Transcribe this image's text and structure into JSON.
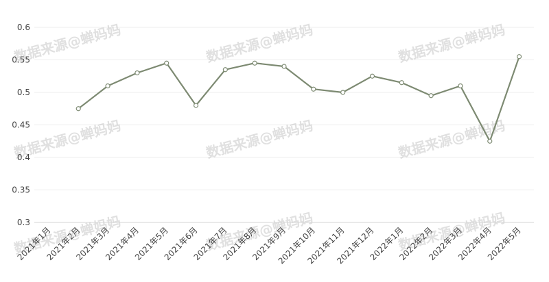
{
  "watermark": "数据来源@蝉妈妈",
  "chart_data": {
    "type": "line",
    "title": "",
    "xlabel": "",
    "ylabel": "",
    "ylim": [
      0.3,
      0.6
    ],
    "yticks": [
      "0.3",
      "0.35",
      "0.4",
      "0.45",
      "0.5",
      "0.55",
      "0.6"
    ],
    "grid": true,
    "legend": "none",
    "line_color": "#7d8a72",
    "categories": [
      "2021年1月",
      "2021年2月",
      "2021年3月",
      "2021年4月",
      "2021年5月",
      "2021年6月",
      "2021年7月",
      "2021年8月",
      "2021年9月",
      "2021年10月",
      "2021年11月",
      "2021年12月",
      "2022年1月",
      "2022年2月",
      "2022年3月",
      "2022年4月",
      "2022年5月"
    ],
    "series": [
      {
        "values": [
          null,
          0.475,
          0.51,
          0.53,
          0.545,
          0.48,
          0.535,
          0.545,
          0.54,
          0.505,
          0.5,
          0.525,
          0.515,
          0.495,
          0.51,
          0.425,
          0.555
        ]
      }
    ]
  }
}
